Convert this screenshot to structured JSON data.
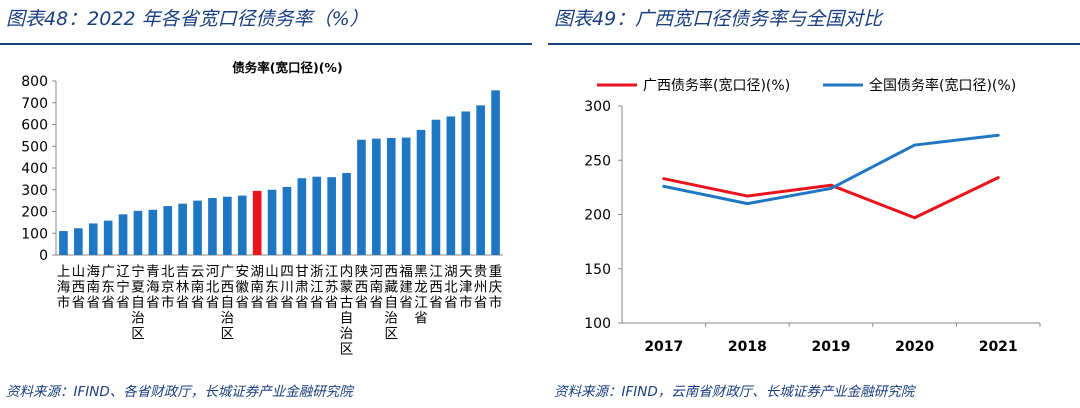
{
  "left": {
    "figure_title": "图表48：2022 年各省宽口径债务率（%）",
    "source": "资料来源：IFIND、各省财政厅，长城证券产业金融研究院"
  },
  "right": {
    "figure_title": "图表49：广西宽口径债务率与全国对比",
    "source": "资料来源：IFIND，云南省财政厅、长城证券产业金融研究院"
  },
  "colors": {
    "blue": "#1f77c4",
    "red": "#e8131b",
    "header": "#1a3e80"
  },
  "chart_data": [
    {
      "type": "bar",
      "title": "债务率(宽口径)(%)",
      "ylim": [
        0,
        800
      ],
      "yticks": [
        0,
        100,
        200,
        300,
        400,
        500,
        600,
        700,
        800
      ],
      "highlight_index": 13,
      "categories": [
        "上海市",
        "山西省",
        "海南省",
        "广东省",
        "辽宁省",
        "宁夏自治区",
        "青海省",
        "北京市",
        "吉林省",
        "云南省",
        "河北省",
        "广西自治区",
        "安徽省",
        "湖南省",
        "山东省",
        "四川省",
        "甘肃省",
        "浙江省",
        "江苏省",
        "内蒙古自治区",
        "陕西省",
        "河南省",
        "西藏自治区",
        "福建省",
        "黑龙江省",
        "江西省",
        "湖北省",
        "天津市",
        "贵州省",
        "重庆市"
      ],
      "values": [
        110,
        123,
        145,
        158,
        187,
        203,
        208,
        225,
        236,
        250,
        262,
        268,
        273,
        295,
        300,
        313,
        353,
        360,
        358,
        377,
        530,
        535,
        538,
        540,
        575,
        622,
        637,
        660,
        688,
        757
      ]
    },
    {
      "type": "line",
      "x": [
        "2017",
        "2018",
        "2019",
        "2020",
        "2021"
      ],
      "ylim": [
        100,
        300
      ],
      "yticks": [
        100,
        150,
        200,
        250,
        300
      ],
      "series": [
        {
          "name": "广西债务率(宽口径)(%)",
          "values": [
            233,
            217,
            227,
            197,
            234
          ]
        },
        {
          "name": "全国债务率(宽口径)(%)",
          "values": [
            226,
            210,
            224,
            264,
            273
          ]
        }
      ]
    }
  ]
}
